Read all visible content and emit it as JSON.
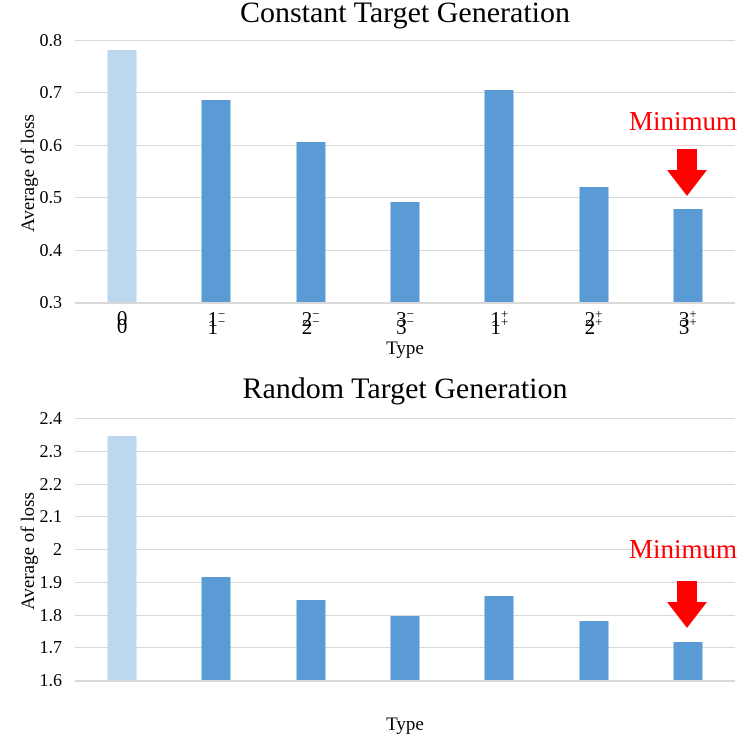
{
  "colors": {
    "bar": "#5B9BD5",
    "bar_highlight": "#BDD7EE",
    "gridline": "#D9D9D9",
    "annotation": "#FF0000",
    "text": "#000000",
    "background": "#FFFFFF"
  },
  "chart_data": [
    {
      "type": "bar",
      "title": "Constant Target Generation",
      "xlabel": "Type",
      "ylabel": "Average of loss",
      "categories": [
        {
          "base": "0",
          "sup": ""
        },
        {
          "base": "1",
          "sup": "−"
        },
        {
          "base": "2",
          "sup": "−"
        },
        {
          "base": "3",
          "sup": "−"
        },
        {
          "base": "1",
          "sup": "+"
        },
        {
          "base": "2",
          "sup": "+"
        },
        {
          "base": "3",
          "sup": "+"
        }
      ],
      "values": [
        0.78,
        0.685,
        0.605,
        0.49,
        0.705,
        0.52,
        0.478
      ],
      "ylim": [
        0.3,
        0.8
      ],
      "ytick_step": 0.1,
      "ytick_labels": [
        "0.3",
        "0.4",
        "0.5",
        "0.6",
        "0.7",
        "0.8"
      ],
      "grid": true,
      "legend": "none",
      "highlight_index": 0,
      "annotation": {
        "label": "Minimum",
        "target_category": "3+",
        "target_index": 6
      }
    },
    {
      "type": "bar",
      "title": "Random Target Generation",
      "xlabel": "Type",
      "ylabel": "Average of loss",
      "categories": [
        {
          "base": "0",
          "sup": ""
        },
        {
          "base": "1",
          "sup": "−"
        },
        {
          "base": "2",
          "sup": "−"
        },
        {
          "base": "3",
          "sup": "−"
        },
        {
          "base": "1",
          "sup": "+"
        },
        {
          "base": "2",
          "sup": "+"
        },
        {
          "base": "3",
          "sup": "+"
        }
      ],
      "values": [
        2.345,
        1.915,
        1.843,
        1.795,
        1.858,
        1.78,
        1.716
      ],
      "ylim": [
        1.6,
        2.4
      ],
      "ytick_step": 0.1,
      "ytick_labels": [
        "1.6",
        "1.7",
        "1.8",
        "1.9",
        "2",
        "2.1",
        "2.2",
        "2.3",
        "2.4"
      ],
      "grid": true,
      "legend": "none",
      "highlight_index": 0,
      "annotation": {
        "label": "Minimum",
        "target_category": "3+",
        "target_index": 6
      }
    }
  ]
}
